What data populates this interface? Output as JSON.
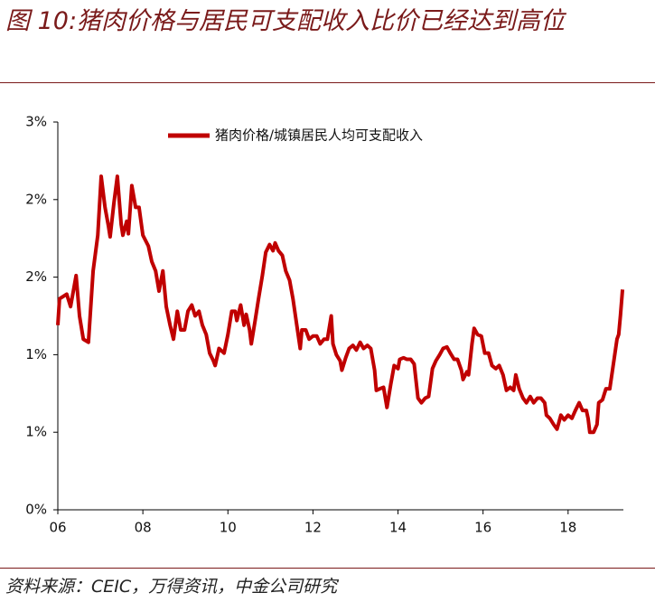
{
  "title": "图 10:猪肉价格与居民可支配收入比价已经达到高位",
  "source": "资料来源：CEIC，万得资讯，中金公司研究",
  "chart_data": {
    "type": "line",
    "x": [
      6.0,
      6.04,
      6.21,
      6.3,
      6.43,
      6.51,
      6.6,
      6.72,
      6.83,
      6.94,
      7.02,
      7.11,
      7.19,
      7.23,
      7.32,
      7.4,
      7.49,
      7.53,
      7.62,
      7.66,
      7.74,
      7.83,
      7.91,
      8.0,
      8.13,
      8.21,
      8.3,
      8.38,
      8.47,
      8.55,
      8.64,
      8.72,
      8.81,
      8.89,
      8.98,
      9.06,
      9.15,
      9.23,
      9.32,
      9.4,
      9.49,
      9.57,
      9.66,
      9.7,
      9.79,
      9.91,
      10.0,
      10.09,
      10.17,
      10.21,
      10.3,
      10.38,
      10.43,
      10.51,
      10.55,
      10.64,
      10.72,
      10.81,
      10.89,
      10.98,
      11.06,
      11.11,
      11.19,
      11.28,
      11.36,
      11.45,
      11.53,
      11.62,
      11.7,
      11.74,
      11.83,
      11.91,
      12.0,
      12.09,
      12.17,
      12.26,
      12.34,
      12.43,
      12.47,
      12.55,
      12.64,
      12.68,
      12.77,
      12.85,
      12.94,
      13.02,
      13.11,
      13.19,
      13.28,
      13.36,
      13.45,
      13.49,
      13.57,
      13.66,
      13.74,
      13.83,
      13.91,
      14.0,
      14.04,
      14.13,
      14.21,
      14.3,
      14.38,
      14.47,
      14.55,
      14.64,
      14.72,
      14.81,
      14.89,
      14.98,
      15.06,
      15.15,
      15.23,
      15.32,
      15.4,
      15.49,
      15.53,
      15.62,
      15.66,
      15.74,
      15.79,
      15.87,
      15.96,
      16.04,
      16.13,
      16.21,
      16.3,
      16.38,
      16.47,
      16.55,
      16.64,
      16.72,
      16.77,
      16.85,
      16.94,
      17.02,
      17.11,
      17.19,
      17.28,
      17.36,
      17.45,
      17.49,
      17.57,
      17.66,
      17.74,
      17.83,
      17.91,
      18.0,
      18.09,
      18.17,
      18.26,
      18.34,
      18.43,
      18.47,
      18.51,
      18.6,
      18.68,
      18.72,
      18.81,
      18.89,
      18.98,
      19.06,
      19.15,
      19.19,
      19.23,
      19.28
    ],
    "series": [
      {
        "name": "猪肉价格/城镇居民人均可支配收入",
        "color": "#c00000",
        "values": [
          1.19,
          1.36,
          1.39,
          1.31,
          1.51,
          1.25,
          1.1,
          1.08,
          1.54,
          1.77,
          2.15,
          1.95,
          1.83,
          1.76,
          1.98,
          2.15,
          1.84,
          1.77,
          1.86,
          1.78,
          2.09,
          1.95,
          1.95,
          1.77,
          1.7,
          1.6,
          1.54,
          1.41,
          1.54,
          1.31,
          1.19,
          1.1,
          1.28,
          1.16,
          1.16,
          1.28,
          1.32,
          1.25,
          1.28,
          1.19,
          1.13,
          1.01,
          0.96,
          0.93,
          1.04,
          1.01,
          1.13,
          1.28,
          1.28,
          1.22,
          1.32,
          1.19,
          1.26,
          1.16,
          1.07,
          1.22,
          1.36,
          1.51,
          1.66,
          1.71,
          1.67,
          1.72,
          1.67,
          1.64,
          1.54,
          1.48,
          1.36,
          1.19,
          1.04,
          1.16,
          1.16,
          1.1,
          1.12,
          1.12,
          1.07,
          1.1,
          1.1,
          1.25,
          1.07,
          1.0,
          0.96,
          0.9,
          0.98,
          1.04,
          1.06,
          1.03,
          1.08,
          1.04,
          1.06,
          1.04,
          0.9,
          0.77,
          0.78,
          0.79,
          0.66,
          0.81,
          0.93,
          0.91,
          0.97,
          0.98,
          0.97,
          0.97,
          0.94,
          0.72,
          0.69,
          0.72,
          0.73,
          0.91,
          0.96,
          1.0,
          1.04,
          1.05,
          1.01,
          0.97,
          0.97,
          0.9,
          0.84,
          0.89,
          0.87,
          1.07,
          1.17,
          1.13,
          1.12,
          1.01,
          1.01,
          0.93,
          0.91,
          0.93,
          0.87,
          0.77,
          0.79,
          0.77,
          0.87,
          0.78,
          0.72,
          0.69,
          0.73,
          0.69,
          0.72,
          0.72,
          0.69,
          0.61,
          0.59,
          0.55,
          0.52,
          0.61,
          0.58,
          0.61,
          0.59,
          0.64,
          0.69,
          0.64,
          0.64,
          0.59,
          0.5,
          0.5,
          0.55,
          0.69,
          0.71,
          0.78,
          0.78,
          0.93,
          1.1,
          1.13,
          1.25,
          1.42
        ]
      }
    ],
    "xlim": [
      6,
      19.3
    ],
    "xticks": [
      {
        "value": 6,
        "label": "06"
      },
      {
        "value": 8,
        "label": "08"
      },
      {
        "value": 10,
        "label": "10"
      },
      {
        "value": 12,
        "label": "12"
      },
      {
        "value": 14,
        "label": "14"
      },
      {
        "value": 16,
        "label": "16"
      },
      {
        "value": 18,
        "label": "18"
      }
    ],
    "ylim": [
      0,
      2.5
    ],
    "yticks": [
      {
        "value": 0,
        "label": "0%"
      },
      {
        "value": 0.5,
        "label": "1%"
      },
      {
        "value": 1,
        "label": "1%"
      },
      {
        "value": 1.5,
        "label": "2%"
      },
      {
        "value": 2,
        "label": "2%"
      },
      {
        "value": 2.5,
        "label": "3%"
      }
    ],
    "grid": false,
    "legend": "top"
  }
}
